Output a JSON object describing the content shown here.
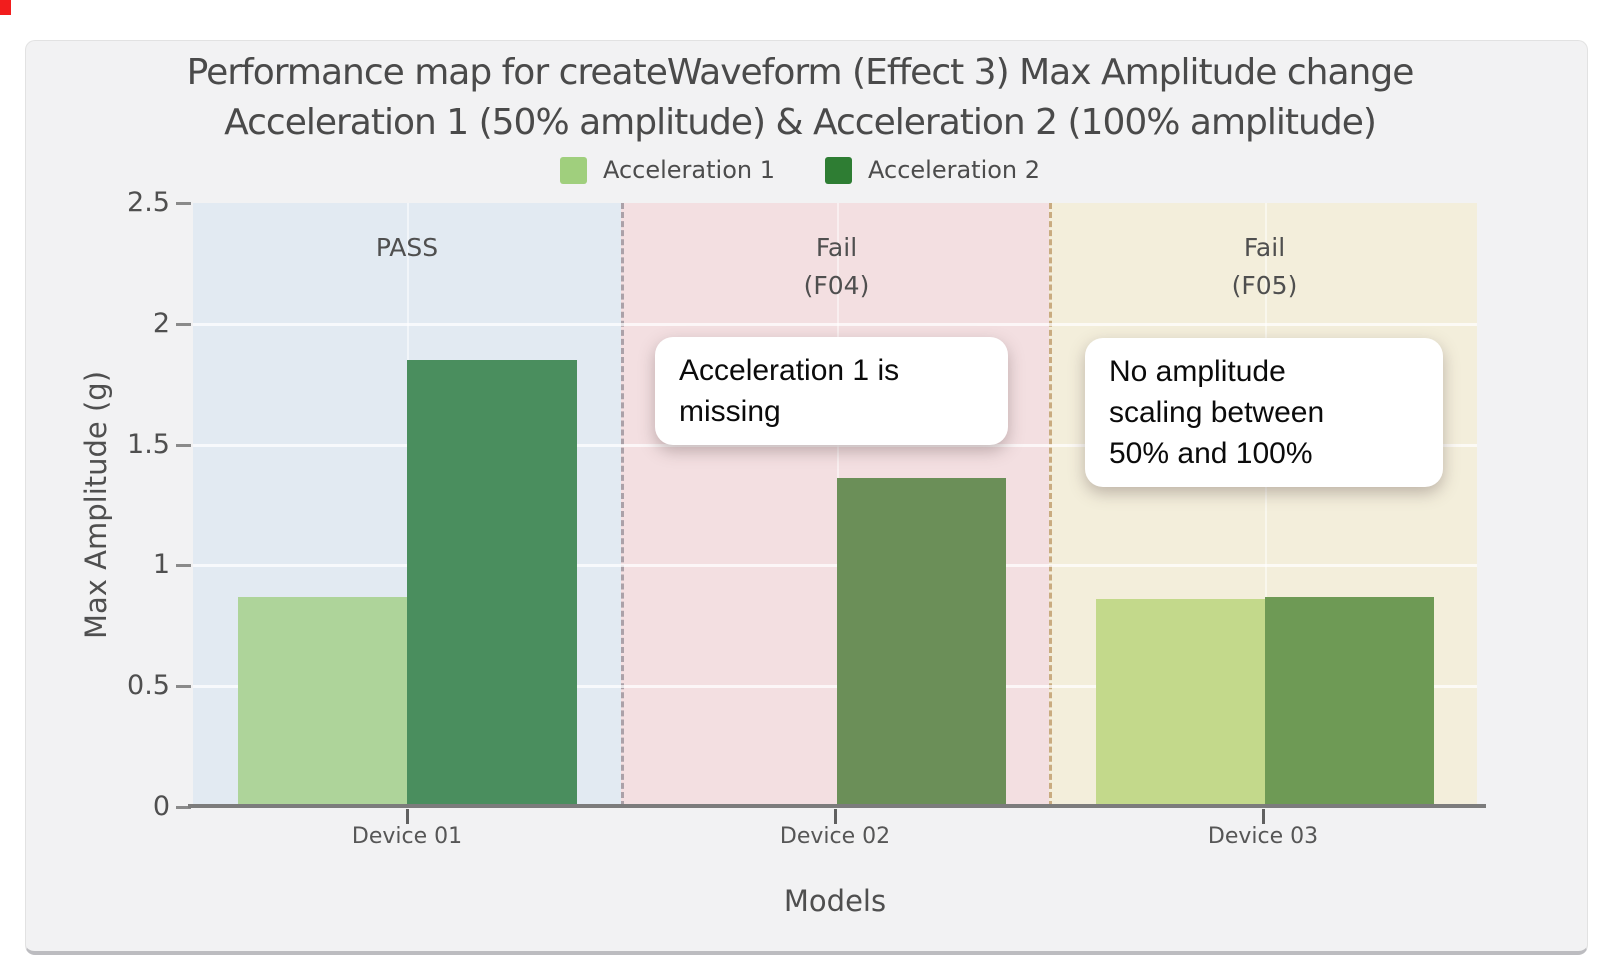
{
  "window": {
    "background": "#ffffff",
    "card_background": "#f2f2f3",
    "record_indicator_color": "#f21d1d"
  },
  "title": {
    "line1": "Performance map for createWaveform (Effect 3) Max Amplitude change",
    "line2": "Acceleration 1 (50% amplitude) & Acceleration 2 (100% amplitude)"
  },
  "legend": [
    {
      "label": "Acceleration 1",
      "color": "#a0cf7d"
    },
    {
      "label": "Acceleration 2",
      "color": "#2e7d33"
    }
  ],
  "axes": {
    "y_title": "Max Amplitude (g)",
    "x_title": "Models"
  },
  "annotations": [
    {
      "text": "Acceleration 1 is\nmissing"
    },
    {
      "text": "No amplitude\nscaling between\n50% and 100%"
    }
  ],
  "chart_data": {
    "type": "bar",
    "title": "Performance map for createWaveform (Effect 3) Max Amplitude change",
    "subtitle": "Acceleration 1 (50% amplitude) & Acceleration 2 (100% amplitude)",
    "xlabel": "Models",
    "ylabel": "Max Amplitude (g)",
    "ylim": [
      0,
      2.5
    ],
    "grid": true,
    "legend_position": "top",
    "y_tick_values": [
      0,
      0.5,
      1,
      1.5,
      2,
      2.5
    ],
    "y_tick_labels": [
      "0",
      "0.5",
      "1",
      "1.5",
      "2",
      "2.5"
    ],
    "categories": [
      "Device 01",
      "Device 02",
      "Device 03"
    ],
    "series": [
      {
        "name": "Acceleration 1",
        "color": "#a0cf7d",
        "values": [
          0.87,
          null,
          0.86
        ]
      },
      {
        "name": "Acceleration 2",
        "color": "#2e7d33",
        "values": [
          1.85,
          1.36,
          0.87
        ]
      }
    ],
    "zones": [
      {
        "category": "Device 01",
        "label": "PASS",
        "sublabel": "",
        "background": "#e2eaf2",
        "divider": "",
        "bars": [
          {
            "series": "Acceleration 1",
            "value": 0.87,
            "fill": "#aed49a",
            "slot": 0
          },
          {
            "series": "Acceleration 2",
            "value": 1.85,
            "fill": "#4a8e5e",
            "slot": 1
          }
        ]
      },
      {
        "category": "Device 02",
        "label": "Fail",
        "sublabel": "(F04)",
        "background": "#f3dfe1",
        "divider": "#aba1a8",
        "bars": [
          {
            "series": "Acceleration 2",
            "value": 1.36,
            "fill": "#6b8f58",
            "slot": 1
          }
        ]
      },
      {
        "category": "Device 03",
        "label": "Fail",
        "sublabel": "(F05)",
        "background": "#f3eedb",
        "divider": "#c9ab80",
        "bars": [
          {
            "series": "Acceleration 1",
            "value": 0.86,
            "fill": "#c3d98b",
            "slot": 0
          },
          {
            "series": "Acceleration 2",
            "value": 0.87,
            "fill": "#6e9a55",
            "slot": 1
          }
        ]
      }
    ]
  }
}
